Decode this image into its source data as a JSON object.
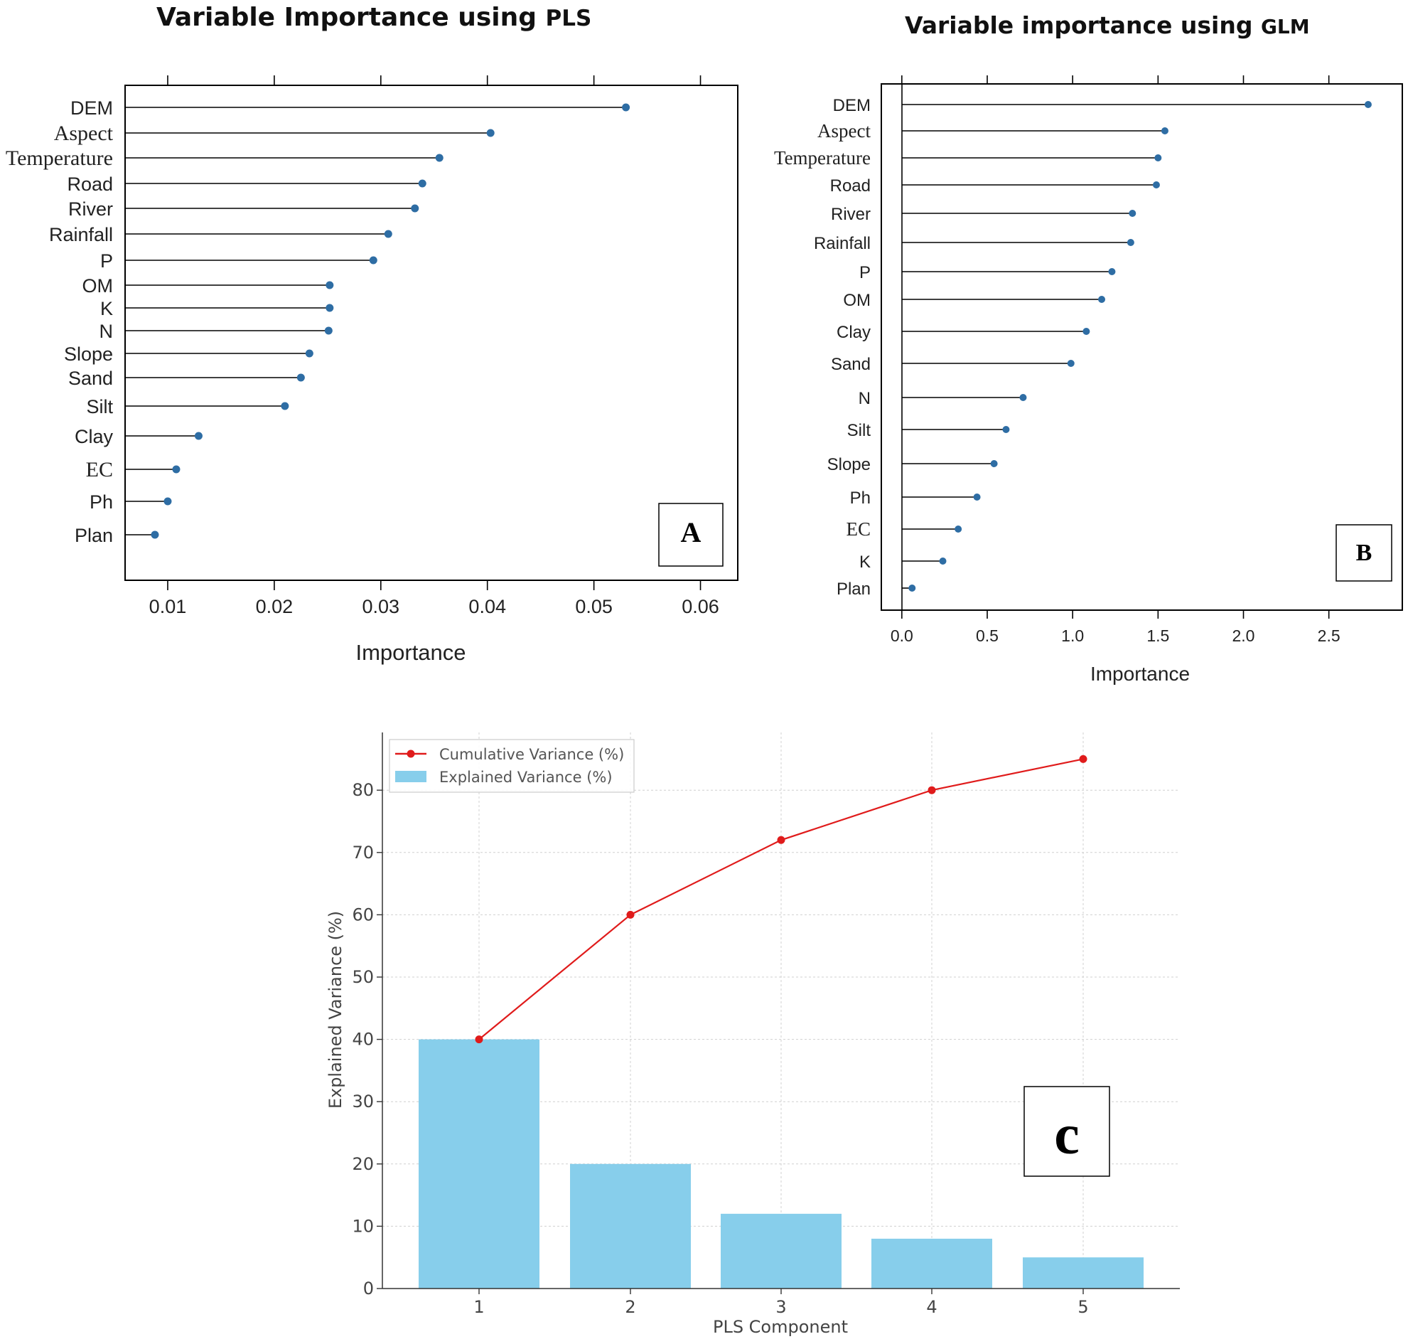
{
  "colors": {
    "dot": "#2e6da4",
    "stem": "#000000",
    "bar": "#87ceeb",
    "line": "#e01b1b",
    "grid": "#d0d0d0"
  },
  "chart_data": [
    {
      "panel": "A",
      "type": "lollipop",
      "title_main": "Variable Importance using ",
      "title_suffix": "PLS",
      "xlabel": "Importance",
      "xlim": [
        0.006,
        0.0635
      ],
      "xticks": [
        0.01,
        0.02,
        0.03,
        0.04,
        0.05,
        0.06
      ],
      "xtick_labels": [
        "0.01",
        "0.02",
        "0.03",
        "0.04",
        "0.05",
        "0.06"
      ],
      "categories": [
        "DEM",
        "Aspect",
        "Temperature",
        "Road",
        "River",
        "Rainfall",
        "P",
        "OM",
        "K",
        "N",
        "Slope",
        "Sand",
        "Silt",
        "Clay",
        "EC",
        "Ph",
        "Plan"
      ],
      "values": [
        0.053,
        0.0403,
        0.0355,
        0.0339,
        0.0332,
        0.0307,
        0.0293,
        0.0252,
        0.0252,
        0.0251,
        0.0233,
        0.0225,
        0.021,
        0.0129,
        0.0108,
        0.01,
        0.0088
      ],
      "label": "A"
    },
    {
      "panel": "B",
      "type": "lollipop",
      "title_main": "Variable importance using ",
      "title_suffix": "GLM",
      "xlabel": "Importance",
      "xlim": [
        -0.12,
        2.93
      ],
      "xticks": [
        0.0,
        0.5,
        1.0,
        1.5,
        2.0,
        2.5
      ],
      "xtick_labels": [
        "0.0",
        "0.5",
        "1.0",
        "1.5",
        "2.0",
        "2.5"
      ],
      "categories": [
        "DEM",
        "Aspect",
        "Temperature",
        "Road",
        "River",
        "Rainfall",
        "P",
        "OM",
        "Clay",
        "Sand",
        "N",
        "Silt",
        "Slope",
        "Ph",
        "EC",
        "K",
        "Plan"
      ],
      "values": [
        2.73,
        1.54,
        1.5,
        1.49,
        1.35,
        1.34,
        1.23,
        1.17,
        1.08,
        0.99,
        0.71,
        0.61,
        0.54,
        0.44,
        0.33,
        0.24,
        0.06
      ],
      "label": "B"
    },
    {
      "panel": "C",
      "type": "bar+line",
      "xlabel": "PLS Component",
      "ylabel": "Explained Variance (%)",
      "categories": [
        "1",
        "2",
        "3",
        "4",
        "5"
      ],
      "ylim": [
        0,
        89
      ],
      "yticks": [
        0,
        10,
        20,
        30,
        40,
        50,
        60,
        70,
        80
      ],
      "ytick_labels": [
        "0",
        "10",
        "20",
        "30",
        "40",
        "50",
        "60",
        "70",
        "80"
      ],
      "grid": true,
      "legend_position": "top-left",
      "series": [
        {
          "name": "Cumulative Variance (%)",
          "kind": "line",
          "values": [
            40,
            60,
            72,
            80,
            85
          ]
        },
        {
          "name": "Explained Variance (%)",
          "kind": "bar",
          "values": [
            40,
            20,
            12,
            8,
            5
          ]
        }
      ],
      "label": "c"
    }
  ]
}
